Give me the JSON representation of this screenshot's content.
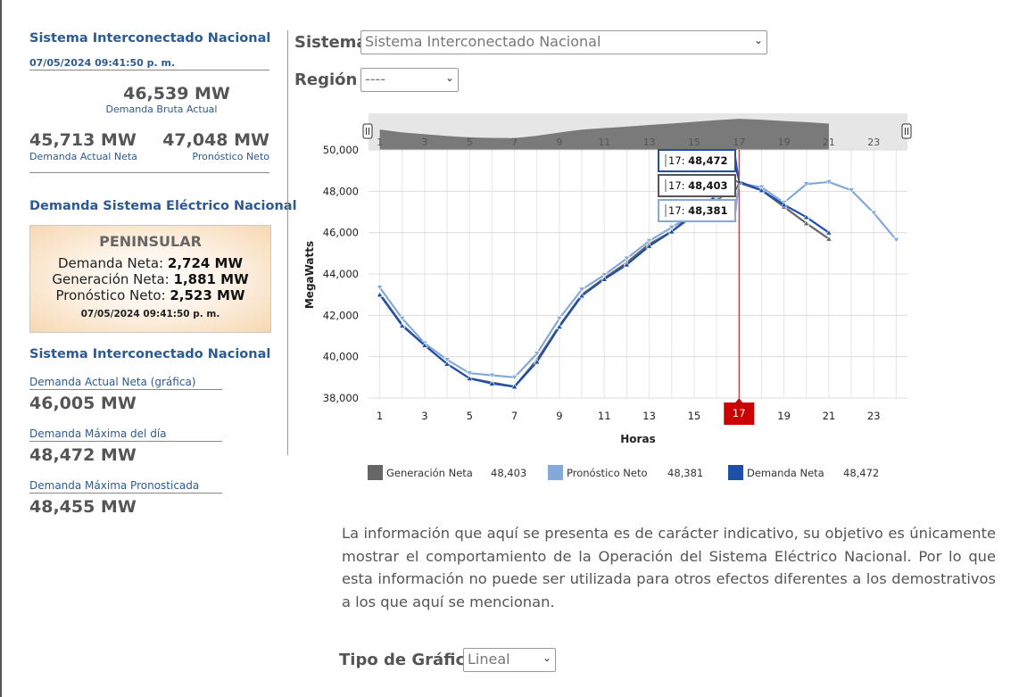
{
  "sidebar": {
    "sin_title": "Sistema Interconectado Nacional",
    "sin_date": "07/05/2024 09:41:50 p. m.",
    "demanda_bruta_value": "46,539 MW",
    "demanda_bruta_caption": "Demanda Bruta Actual",
    "demanda_neta_value": "45,713 MW",
    "demanda_neta_caption": "Demanda Actual Neta",
    "pronostico_value": "47,048 MW",
    "pronostico_caption": "Pronóstico Neto",
    "sen_title": "Demanda Sistema Eléctrico Nacional",
    "peninsular": {
      "title": "PENINSULAR",
      "demanda_label": "Demanda Neta: ",
      "demanda_value": "2,724 MW",
      "generacion_label": "Generación Neta: ",
      "generacion_value": "1,881 MW",
      "pronostico_label": "Pronóstico Neto: ",
      "pronostico_value": "2,523 MW",
      "date": "07/05/2024 09:41:50 p. m."
    },
    "sin2_title": "Sistema Interconectado Nacional",
    "stats": [
      {
        "label": "Demanda Actual Neta (gráfica)",
        "value": "46,005 MW"
      },
      {
        "label": "Demanda Máxima del día",
        "value": "48,472 MW"
      },
      {
        "label": "Demanda Máxima Pronosticada",
        "value": "48,455 MW"
      }
    ]
  },
  "controls": {
    "sistema_label": "Sistema",
    "sistema_value": "Sistema Interconectado Nacional",
    "region_label": "Región",
    "region_value": "----",
    "tipo_label": "Tipo de Gráfica",
    "tipo_value": "Lineal"
  },
  "disclaimer": "La información que aquí se presenta es de carácter indicativo, su objetivo es únicamente mostrar el comportamiento de la Operación del Sistema Eléctrico Nacional. Por lo que esta información no puede ser utilizada para otros efectos diferentes a los demostrativos a los que aquí se mencionan.",
  "colors": {
    "generacion": "#666666",
    "pronostico": "#84a9d8",
    "demanda": "#1f4fa6",
    "crosshair": "#cc0000"
  },
  "chart_data": {
    "type": "line",
    "xlabel": "Horas",
    "ylabel": "MegaWatts",
    "xlim": [
      0.5,
      24.5
    ],
    "ylim": [
      38000,
      50000
    ],
    "xticks": [
      1,
      3,
      5,
      7,
      9,
      11,
      13,
      15,
      17,
      19,
      21,
      23
    ],
    "yticks": [
      38000,
      40000,
      42000,
      44000,
      46000,
      48000,
      50000
    ],
    "ytick_labels": [
      "38,000",
      "40,000",
      "42,000",
      "44,000",
      "46,000",
      "48,000",
      "50,000"
    ],
    "grid": true,
    "navigator_ticks": [
      1,
      3,
      5,
      7,
      9,
      11,
      13,
      15,
      17,
      19,
      21,
      23
    ],
    "crosshair_x": 17,
    "crosshair_label": "17",
    "series": [
      {
        "name": "Generación Neta",
        "legend_value": "48,403",
        "tooltip": "17: 48,403",
        "x": [
          1,
          2,
          3,
          4,
          5,
          6,
          7,
          8,
          9,
          10,
          11,
          12,
          13,
          14,
          15,
          16,
          17,
          18,
          19,
          20,
          21
        ],
        "values": [
          43050,
          41550,
          40550,
          39650,
          38950,
          38750,
          38550,
          39850,
          41500,
          43000,
          43800,
          44550,
          45450,
          46050,
          46850,
          47550,
          48403,
          48050,
          47250,
          46450,
          45700
        ]
      },
      {
        "name": "Pronóstico Neto",
        "legend_value": "48,381",
        "tooltip": "17: 48,381",
        "x": [
          1,
          2,
          3,
          4,
          5,
          6,
          7,
          8,
          9,
          10,
          11,
          12,
          13,
          14,
          15,
          16,
          17,
          18,
          19,
          20,
          21,
          22,
          23,
          24
        ],
        "values": [
          43350,
          41850,
          40650,
          39850,
          39200,
          39100,
          39000,
          40150,
          41850,
          43250,
          43950,
          44750,
          45600,
          46250,
          46950,
          47700,
          48381,
          48200,
          47450,
          48350,
          48450,
          48050,
          46950,
          45650
        ]
      },
      {
        "name": "Demanda Neta",
        "legend_value": "48,472",
        "tooltip": "17: 48,472",
        "x": [
          1,
          2,
          3,
          4,
          5,
          6,
          7,
          8,
          9,
          10,
          11,
          12,
          13,
          14,
          15,
          16,
          17,
          18,
          19,
          20,
          21
        ],
        "values": [
          43000,
          41500,
          40550,
          39650,
          38950,
          38700,
          38550,
          39750,
          41450,
          42950,
          43750,
          44450,
          45350,
          46050,
          46950,
          47800,
          48472,
          48050,
          47350,
          46750,
          46000
        ]
      }
    ]
  }
}
